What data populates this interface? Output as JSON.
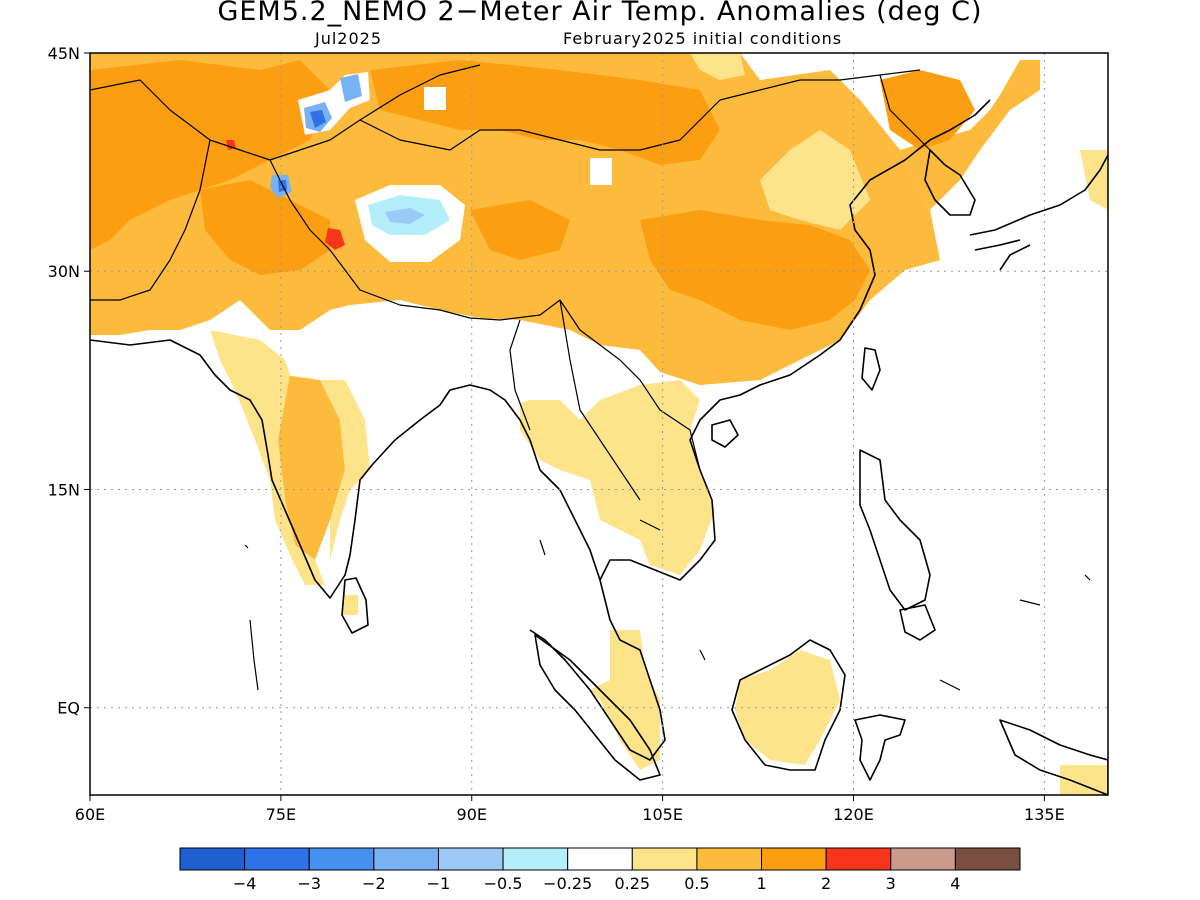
{
  "header": {
    "title": "GEM5.2_NEMO 2−Meter Air Temp. Anomalies (deg C)",
    "valid_month": "Jul2025",
    "initial_conditions": "February2025 initial conditions"
  },
  "map": {
    "projection": "lat-lon",
    "lon_range": [
      60,
      140
    ],
    "lat_range": [
      -6,
      45
    ],
    "lon_ticks": [
      {
        "value": 60,
        "label": "60E"
      },
      {
        "value": 75,
        "label": "75E"
      },
      {
        "value": 90,
        "label": "90E"
      },
      {
        "value": 105,
        "label": "105E"
      },
      {
        "value": 120,
        "label": "120E"
      },
      {
        "value": 135,
        "label": "135E"
      }
    ],
    "lat_ticks": [
      {
        "value": 45,
        "label": "45N"
      },
      {
        "value": 30,
        "label": "30N"
      },
      {
        "value": 15,
        "label": "15N"
      },
      {
        "value": 0,
        "label": "EQ"
      }
    ],
    "grid": "dotted gray at tick values"
  },
  "legend": {
    "colors": [
      "#1f5fcf",
      "#2f72e8",
      "#4690f0",
      "#78b2f2",
      "#9ccaf6",
      "#b4eefa",
      "#ffffff",
      "#fde48a",
      "#fdbb3e",
      "#fc9e12",
      "#f7351a",
      "#c89b8c",
      "#7a4f42"
    ],
    "labels": [
      "−4",
      "−3",
      "−2",
      "−1",
      "−0.5",
      "−0.25",
      "0.25",
      "0.5",
      "1",
      "2",
      "3",
      "4"
    ]
  }
}
